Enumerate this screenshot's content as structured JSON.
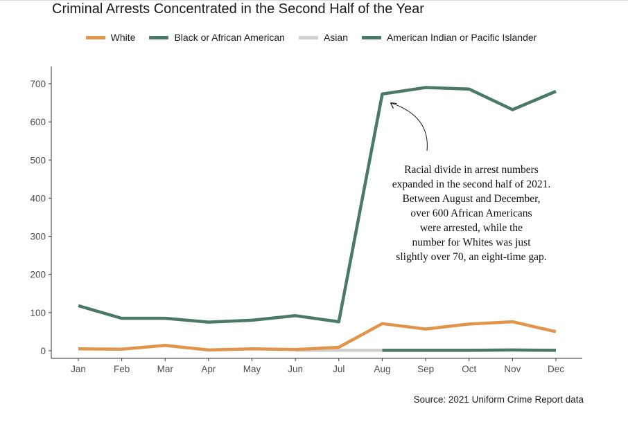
{
  "chart_data": {
    "type": "line",
    "title": "Criminal Arrests Concentrated in the Second Half of the Year",
    "source": "Source: 2021 Uniform Crime Report data",
    "categories": [
      "Jan",
      "Feb",
      "Mar",
      "Apr",
      "May",
      "Jun",
      "Jul",
      "Aug",
      "Sep",
      "Oct",
      "Nov",
      "Dec"
    ],
    "y_ticks": [
      "0",
      "100",
      "200",
      "300",
      "400",
      "500",
      "600",
      "700"
    ],
    "ylim": [
      -10,
      745
    ],
    "grid": false,
    "legend_position": "top",
    "series": [
      {
        "name": "White",
        "color": "#e0954a",
        "values": [
          5,
          4,
          14,
          2,
          5,
          3,
          9,
          71,
          57,
          70,
          76,
          50
        ]
      },
      {
        "name": "Black or African American",
        "color": "#4a7a63",
        "values": [
          118,
          85,
          85,
          75,
          80,
          92,
          76,
          673,
          690,
          686,
          632,
          680
        ]
      },
      {
        "name": "Asian",
        "color": "#d0d0cc",
        "values": [
          null,
          null,
          null,
          null,
          null,
          1,
          1,
          1,
          null,
          null,
          null,
          null
        ]
      },
      {
        "name": "American Indian or Pacific Islander",
        "color": "#4a7a63",
        "values": [
          null,
          null,
          null,
          null,
          null,
          null,
          null,
          1,
          1,
          1,
          2,
          1
        ]
      }
    ],
    "annotation": {
      "lines": [
        "Racial divide in arrest numbers",
        "expanded in the second half of 2021.",
        "Between August and December,",
        "over 600 African Americans",
        "were arrested, while the",
        "number for Whites was just",
        "slightly over 70, an eight-time gap."
      ],
      "points_to_category": "Aug",
      "points_to_value": 650
    }
  }
}
